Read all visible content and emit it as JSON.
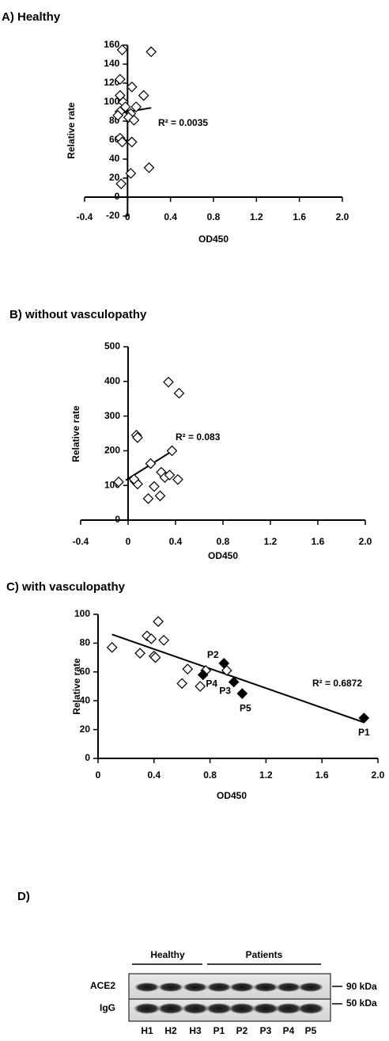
{
  "chart_data": [
    {
      "type": "scatter",
      "title": "A) Healthy",
      "xlabel": "OD450",
      "ylabel": "Relative rate",
      "xlim": [
        -0.4,
        2.0
      ],
      "ylim": [
        -20,
        160
      ],
      "xticks": [
        -0.4,
        0,
        0.4,
        0.8,
        1.2,
        1.6,
        {
          "value": 2.0,
          "label": "2.0"
        }
      ],
      "yticks": [
        -20,
        0,
        20,
        40,
        60,
        80,
        100,
        120,
        140,
        160
      ],
      "series": [
        {
          "color": "#000000",
          "filled": false,
          "x": [
            -0.05,
            0.22,
            -0.07,
            -0.07,
            0.15,
            0.04,
            -0.04,
            -0.02,
            0.08,
            -0.07,
            0.03,
            -0.09,
            0.01,
            0.06,
            -0.07,
            -0.05,
            0.04,
            0.2,
            0.03,
            -0.06
          ],
          "y": [
            155,
            153,
            124,
            107,
            107,
            116,
            100,
            95,
            95,
            90,
            88,
            86,
            84,
            81,
            62,
            58,
            58,
            31,
            25,
            14
          ]
        }
      ],
      "trendline": {
        "x": [
          -0.09,
          0.22
        ],
        "y": [
          88,
          94
        ]
      },
      "annotation": "R² = 0.0035"
    },
    {
      "type": "scatter",
      "title": "B) without vasculopathy",
      "xlabel": "OD450",
      "ylabel": "Relative rate",
      "xlim": [
        -0.4,
        2.0
      ],
      "ylim": [
        0,
        500
      ],
      "xticks": [
        -0.4,
        0,
        0.4,
        0.8,
        1.2,
        1.6,
        {
          "value": 2.0,
          "label": "2.0"
        }
      ],
      "yticks": [
        0,
        100,
        200,
        300,
        400,
        500
      ],
      "series": [
        {
          "color": "#000000",
          "filled": false,
          "x": [
            -0.08,
            0.34,
            0.43,
            0.07,
            0.08,
            0.37,
            0.19,
            0.28,
            0.31,
            0.35,
            0.42,
            0.06,
            0.08,
            0.05,
            0.22,
            0.17,
            0.27
          ],
          "y": [
            110,
            398,
            366,
            245,
            238,
            200,
            163,
            138,
            123,
            130,
            117,
            112,
            104,
            118,
            97,
            62,
            70
          ]
        }
      ],
      "trendline": {
        "x": [
          -0.02,
          0.4
        ],
        "y": [
          115,
          205
        ]
      },
      "annotation": "R² = 0.083"
    },
    {
      "type": "scatter",
      "title": "C) with vasculopathy",
      "xlabel": "OD450",
      "ylabel": "Relative rate",
      "xlim": [
        0,
        2.0
      ],
      "ylim": [
        0,
        100
      ],
      "xticks": [
        0,
        0.4,
        0.8,
        1.2,
        1.6,
        {
          "value": 2.0,
          "label": "2.0"
        }
      ],
      "yticks": [
        0,
        20,
        40,
        60,
        80,
        100
      ],
      "series": [
        {
          "color": "#000000",
          "filled": false,
          "x": [
            0.1,
            0.3,
            0.35,
            0.38,
            0.4,
            0.41,
            0.43,
            0.47,
            0.6,
            0.64,
            0.73,
            0.77,
            0.92
          ],
          "y": [
            77,
            73,
            85,
            83,
            71,
            70,
            95,
            82,
            52,
            62,
            50,
            61,
            61
          ]
        },
        {
          "color": "#000000",
          "filled": true,
          "x": [
            1.9,
            0.9,
            0.97,
            0.75,
            1.03
          ],
          "y": [
            28,
            66,
            53,
            58,
            45
          ],
          "labels": [
            "P1",
            "P2",
            "P3",
            "P4",
            "P5"
          ]
        }
      ],
      "trendline": {
        "x": [
          0.1,
          1.9
        ],
        "y": [
          86,
          25
        ]
      },
      "annotation": "R² = 0.6872"
    }
  ],
  "blot": {
    "title": "D)",
    "groups": [
      "Healthy",
      "Patients"
    ],
    "rows": [
      "ACE2",
      "IgG"
    ],
    "sizes": [
      "90 kDa",
      "50 kDa"
    ],
    "lanes": [
      "H1",
      "H2",
      "H3",
      "P1",
      "P2",
      "P3",
      "P4",
      "P5"
    ]
  }
}
